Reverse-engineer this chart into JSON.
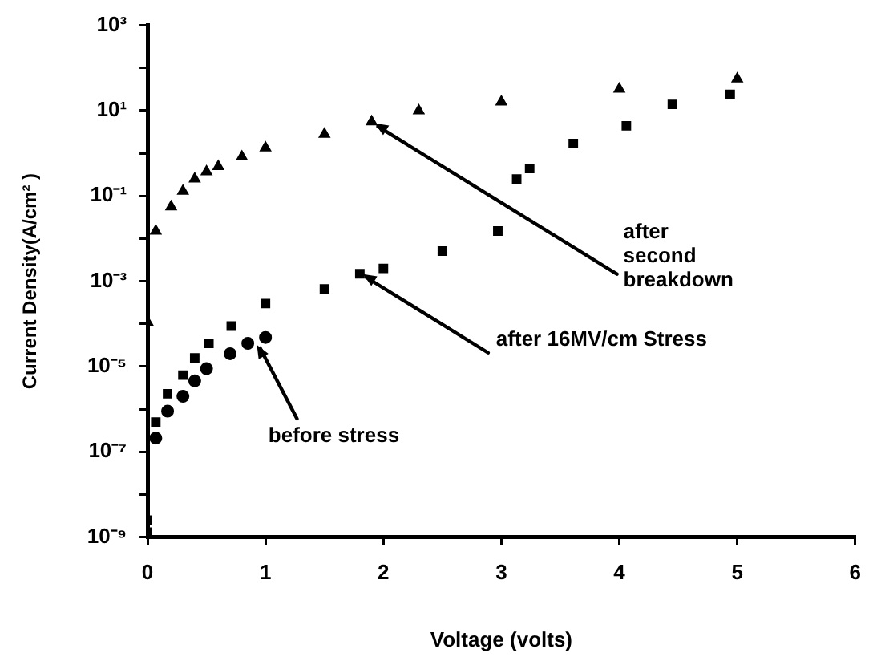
{
  "chart_data": {
    "type": "scatter",
    "xlabel": "Voltage (volts)",
    "ylabel": "Current Density(A/cm² )",
    "log": "y",
    "xlim": [
      0,
      6
    ],
    "xticks": [
      0,
      1,
      2,
      3,
      4,
      5,
      6
    ],
    "ylim": [
      1e-09,
      1000
    ],
    "yticks": [
      {
        "value": 1e-09,
        "label": "10⁻⁹"
      },
      {
        "value": 1e-08,
        "label": null
      },
      {
        "value": 1e-07,
        "label": "10⁻⁷"
      },
      {
        "value": 1e-06,
        "label": null
      },
      {
        "value": 1e-05,
        "label": "10⁻⁵"
      },
      {
        "value": 0.0001,
        "label": null
      },
      {
        "value": 0.001,
        "label": "10⁻³"
      },
      {
        "value": 0.01,
        "label": null
      },
      {
        "value": 0.1,
        "label": "10⁻¹"
      },
      {
        "value": 1,
        "label": null
      },
      {
        "value": 10,
        "label": "10¹"
      },
      {
        "value": 100,
        "label": null
      },
      {
        "value": 1000,
        "label": "10³"
      }
    ],
    "grid": false,
    "legend": false,
    "series": [
      {
        "color": "#000000",
        "marker": "triangle",
        "x": [
          0,
          0.07,
          0.2,
          0.3,
          0.4,
          0.5,
          0.6,
          0.8,
          1.0,
          1.5,
          1.9,
          2.3,
          3.0,
          4.0,
          5.0
        ],
        "values": [
          0.00011,
          0.015,
          0.056,
          0.13,
          0.25,
          0.37,
          0.49,
          0.83,
          1.35,
          2.8,
          5.5,
          10,
          16,
          32,
          56
        ]
      },
      {
        "color": "#000000",
        "marker": "square",
        "x": [
          0,
          0,
          0.07,
          0.17,
          0.3,
          0.4,
          0.52,
          0.71,
          1.0,
          1.5,
          1.8,
          2.0,
          2.5,
          2.97,
          3.13,
          3.24,
          3.61,
          4.06,
          4.45,
          4.94
        ],
        "values": [
          2.5e-09,
          1.3e-09,
          5e-07,
          2.3e-06,
          6.3e-06,
          1.6e-05,
          3.5e-05,
          8.9e-05,
          0.0003,
          0.00066,
          0.0015,
          0.002,
          0.0051,
          0.015,
          0.25,
          0.44,
          1.7,
          4.4,
          14,
          24
        ]
      },
      {
        "color": "#000000",
        "marker": "circle",
        "x": [
          0.07,
          0.17,
          0.3,
          0.4,
          0.5,
          0.7,
          0.85,
          1.0
        ],
        "values": [
          2.1e-07,
          9e-07,
          2e-06,
          4.6e-06,
          8.9e-06,
          2e-05,
          3.5e-05,
          4.8e-05
        ]
      }
    ],
    "annotations": [
      {
        "text": "after second breakdown",
        "x": 1.9,
        "y": 5.5
      },
      {
        "text": "after 16MV/cm Stress",
        "x": 1.8,
        "y": 0.0016
      },
      {
        "text": "before stress",
        "x": 0.9,
        "y": 3.5e-05
      }
    ]
  }
}
